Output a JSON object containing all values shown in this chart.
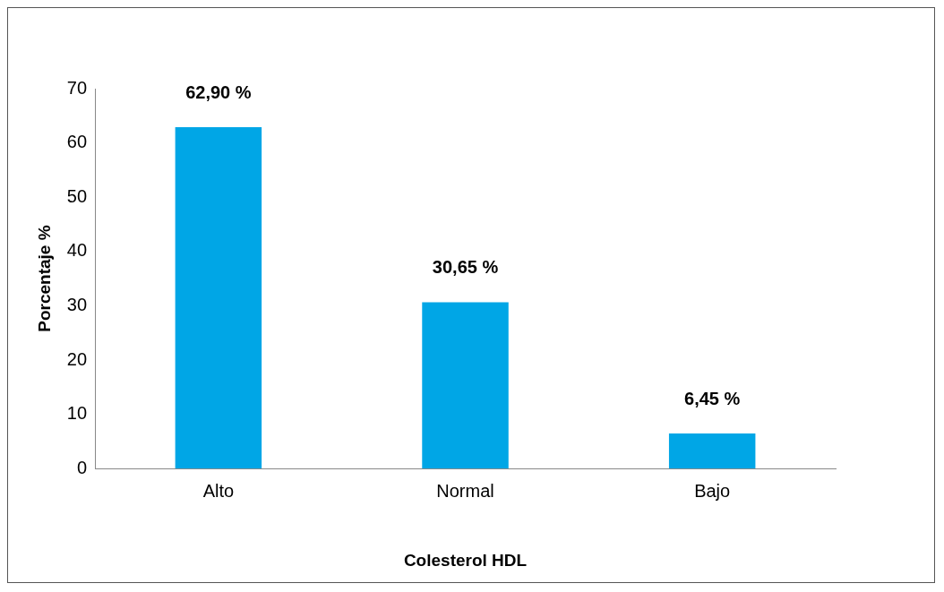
{
  "chart_data": {
    "type": "bar",
    "xlabel": "Colesterol HDL",
    "ylabel": "Porcentaje %",
    "categories": [
      "Alto",
      "Normal",
      "Bajo"
    ],
    "values": [
      62.9,
      30.65,
      6.45
    ],
    "color": "#00a6e6",
    "value_labels": [
      "62,90 %",
      "30,65 %",
      "6,45 %"
    ],
    "ylim": [
      0,
      70
    ],
    "yticks": [
      0,
      10,
      20,
      30,
      40,
      50,
      60,
      70
    ]
  }
}
